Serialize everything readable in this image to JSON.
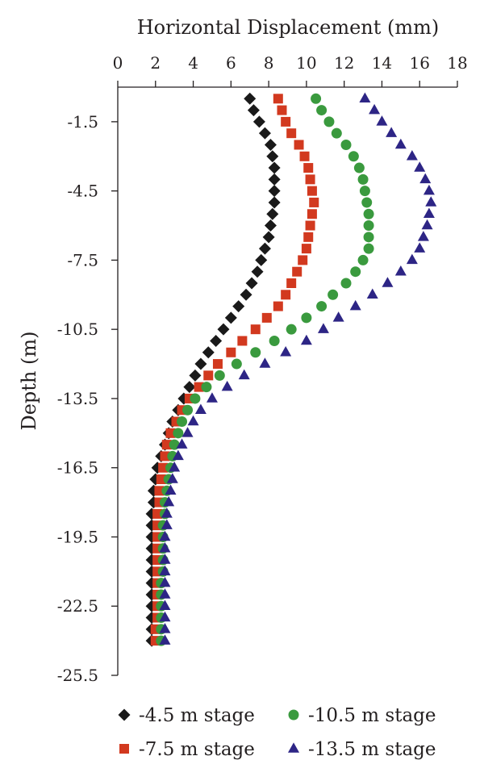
{
  "chart_data": {
    "type": "scatter",
    "xlabel": "Horizontal Displacement (mm)",
    "ylabel": "Depth (m)",
    "xlim": [
      0,
      18
    ],
    "ylim": [
      -25.5,
      0
    ],
    "x_axis_position": "top",
    "x_ticks": [
      "0",
      "2",
      "4",
      "6",
      "8",
      "10",
      "12",
      "14",
      "16",
      "18"
    ],
    "y_ticks": [
      "-1.5",
      "-4.5",
      "-7.5",
      "-10.5",
      "-13.5",
      "-16.5",
      "-19.5",
      "-22.5",
      "-25.5"
    ],
    "grid": false,
    "legend_position": "bottom",
    "colors": {
      "-4.5 m stage": "#1a1a1a",
      "-7.5 m stage": "#d2391f",
      "-10.5 m stage": "#3a9a3e",
      "-13.5 m stage": "#2d2585"
    },
    "series": [
      {
        "name": "-4.5 m stage",
        "marker": "diamond",
        "points": [
          [
            7.0,
            -0.5
          ],
          [
            7.2,
            -1.0
          ],
          [
            7.5,
            -1.5
          ],
          [
            7.8,
            -2.0
          ],
          [
            8.1,
            -2.5
          ],
          [
            8.2,
            -3.0
          ],
          [
            8.3,
            -3.5
          ],
          [
            8.3,
            -4.0
          ],
          [
            8.3,
            -4.5
          ],
          [
            8.3,
            -5.0
          ],
          [
            8.2,
            -5.5
          ],
          [
            8.1,
            -6.0
          ],
          [
            8.0,
            -6.5
          ],
          [
            7.8,
            -7.0
          ],
          [
            7.6,
            -7.5
          ],
          [
            7.4,
            -8.0
          ],
          [
            7.1,
            -8.5
          ],
          [
            6.8,
            -9.0
          ],
          [
            6.4,
            -9.5
          ],
          [
            6.0,
            -10.0
          ],
          [
            5.6,
            -10.5
          ],
          [
            5.2,
            -11.0
          ],
          [
            4.8,
            -11.5
          ],
          [
            4.4,
            -12.0
          ],
          [
            4.1,
            -12.5
          ],
          [
            3.8,
            -13.0
          ],
          [
            3.5,
            -13.5
          ],
          [
            3.2,
            -14.0
          ],
          [
            2.9,
            -14.5
          ],
          [
            2.7,
            -15.0
          ],
          [
            2.5,
            -15.5
          ],
          [
            2.3,
            -16.0
          ],
          [
            2.1,
            -16.5
          ],
          [
            2.0,
            -17.0
          ],
          [
            1.9,
            -17.5
          ],
          [
            1.9,
            -18.0
          ],
          [
            1.8,
            -18.5
          ],
          [
            1.8,
            -19.0
          ],
          [
            1.8,
            -19.5
          ],
          [
            1.8,
            -20.0
          ],
          [
            1.8,
            -20.5
          ],
          [
            1.8,
            -21.0
          ],
          [
            1.8,
            -21.5
          ],
          [
            1.8,
            -22.0
          ],
          [
            1.8,
            -22.5
          ],
          [
            1.8,
            -23.0
          ],
          [
            1.8,
            -23.5
          ],
          [
            1.8,
            -24.0
          ]
        ]
      },
      {
        "name": "-7.5 m stage",
        "marker": "square",
        "points": [
          [
            8.5,
            -0.5
          ],
          [
            8.7,
            -1.0
          ],
          [
            8.9,
            -1.5
          ],
          [
            9.2,
            -2.0
          ],
          [
            9.6,
            -2.5
          ],
          [
            9.9,
            -3.0
          ],
          [
            10.1,
            -3.5
          ],
          [
            10.2,
            -4.0
          ],
          [
            10.3,
            -4.5
          ],
          [
            10.4,
            -5.0
          ],
          [
            10.3,
            -5.5
          ],
          [
            10.2,
            -6.0
          ],
          [
            10.1,
            -6.5
          ],
          [
            10.0,
            -7.0
          ],
          [
            9.8,
            -7.5
          ],
          [
            9.5,
            -8.0
          ],
          [
            9.2,
            -8.5
          ],
          [
            8.9,
            -9.0
          ],
          [
            8.5,
            -9.5
          ],
          [
            7.9,
            -10.0
          ],
          [
            7.3,
            -10.5
          ],
          [
            6.6,
            -11.0
          ],
          [
            6.0,
            -11.5
          ],
          [
            5.3,
            -12.0
          ],
          [
            4.8,
            -12.5
          ],
          [
            4.3,
            -13.0
          ],
          [
            3.8,
            -13.5
          ],
          [
            3.4,
            -14.0
          ],
          [
            3.1,
            -14.5
          ],
          [
            2.8,
            -15.0
          ],
          [
            2.6,
            -15.5
          ],
          [
            2.5,
            -16.0
          ],
          [
            2.4,
            -16.5
          ],
          [
            2.3,
            -17.0
          ],
          [
            2.2,
            -17.5
          ],
          [
            2.2,
            -18.0
          ],
          [
            2.1,
            -18.5
          ],
          [
            2.1,
            -19.0
          ],
          [
            2.1,
            -19.5
          ],
          [
            2.1,
            -20.0
          ],
          [
            2.1,
            -20.5
          ],
          [
            2.1,
            -21.0
          ],
          [
            2.1,
            -21.5
          ],
          [
            2.1,
            -22.0
          ],
          [
            2.1,
            -22.5
          ],
          [
            2.1,
            -23.0
          ],
          [
            2.0,
            -23.5
          ],
          [
            2.0,
            -24.0
          ]
        ]
      },
      {
        "name": "-10.5 m stage",
        "marker": "circle",
        "points": [
          [
            10.5,
            -0.5
          ],
          [
            10.8,
            -1.0
          ],
          [
            11.2,
            -1.5
          ],
          [
            11.6,
            -2.0
          ],
          [
            12.1,
            -2.5
          ],
          [
            12.5,
            -3.0
          ],
          [
            12.8,
            -3.5
          ],
          [
            13.0,
            -4.0
          ],
          [
            13.1,
            -4.5
          ],
          [
            13.2,
            -5.0
          ],
          [
            13.3,
            -5.5
          ],
          [
            13.3,
            -6.0
          ],
          [
            13.3,
            -6.5
          ],
          [
            13.3,
            -7.0
          ],
          [
            13.0,
            -7.5
          ],
          [
            12.6,
            -8.0
          ],
          [
            12.1,
            -8.5
          ],
          [
            11.4,
            -9.0
          ],
          [
            10.8,
            -9.5
          ],
          [
            10.0,
            -10.0
          ],
          [
            9.2,
            -10.5
          ],
          [
            8.3,
            -11.0
          ],
          [
            7.3,
            -11.5
          ],
          [
            6.3,
            -12.0
          ],
          [
            5.4,
            -12.5
          ],
          [
            4.7,
            -13.0
          ],
          [
            4.1,
            -13.5
          ],
          [
            3.7,
            -14.0
          ],
          [
            3.4,
            -14.5
          ],
          [
            3.2,
            -15.0
          ],
          [
            3.0,
            -15.5
          ],
          [
            2.9,
            -16.0
          ],
          [
            2.8,
            -16.5
          ],
          [
            2.7,
            -17.0
          ],
          [
            2.6,
            -17.5
          ],
          [
            2.5,
            -18.0
          ],
          [
            2.5,
            -18.5
          ],
          [
            2.4,
            -19.0
          ],
          [
            2.4,
            -19.5
          ],
          [
            2.4,
            -20.0
          ],
          [
            2.4,
            -20.5
          ],
          [
            2.4,
            -21.0
          ],
          [
            2.3,
            -21.5
          ],
          [
            2.3,
            -22.0
          ],
          [
            2.3,
            -22.5
          ],
          [
            2.3,
            -23.0
          ],
          [
            2.3,
            -23.5
          ],
          [
            2.3,
            -24.0
          ]
        ]
      },
      {
        "name": "-13.5 m stage",
        "marker": "triangle",
        "points": [
          [
            13.1,
            -0.5
          ],
          [
            13.6,
            -1.0
          ],
          [
            14.0,
            -1.5
          ],
          [
            14.5,
            -2.0
          ],
          [
            15.0,
            -2.5
          ],
          [
            15.6,
            -3.0
          ],
          [
            16.0,
            -3.5
          ],
          [
            16.3,
            -4.0
          ],
          [
            16.5,
            -4.5
          ],
          [
            16.6,
            -5.0
          ],
          [
            16.5,
            -5.5
          ],
          [
            16.4,
            -6.0
          ],
          [
            16.2,
            -6.5
          ],
          [
            16.0,
            -7.0
          ],
          [
            15.6,
            -7.5
          ],
          [
            15.0,
            -8.0
          ],
          [
            14.3,
            -8.5
          ],
          [
            13.5,
            -9.0
          ],
          [
            12.6,
            -9.5
          ],
          [
            11.7,
            -10.0
          ],
          [
            10.9,
            -10.5
          ],
          [
            10.0,
            -11.0
          ],
          [
            8.9,
            -11.5
          ],
          [
            7.8,
            -12.0
          ],
          [
            6.7,
            -12.5
          ],
          [
            5.8,
            -13.0
          ],
          [
            5.0,
            -13.5
          ],
          [
            4.4,
            -14.0
          ],
          [
            4.0,
            -14.5
          ],
          [
            3.7,
            -15.0
          ],
          [
            3.4,
            -15.5
          ],
          [
            3.2,
            -16.0
          ],
          [
            3.0,
            -16.5
          ],
          [
            2.9,
            -17.0
          ],
          [
            2.8,
            -17.5
          ],
          [
            2.7,
            -18.0
          ],
          [
            2.6,
            -18.5
          ],
          [
            2.6,
            -19.0
          ],
          [
            2.5,
            -19.5
          ],
          [
            2.5,
            -20.0
          ],
          [
            2.5,
            -20.5
          ],
          [
            2.5,
            -21.0
          ],
          [
            2.5,
            -21.5
          ],
          [
            2.5,
            -22.0
          ],
          [
            2.5,
            -22.5
          ],
          [
            2.5,
            -23.0
          ],
          [
            2.5,
            -23.5
          ],
          [
            2.5,
            -24.0
          ]
        ]
      }
    ]
  }
}
